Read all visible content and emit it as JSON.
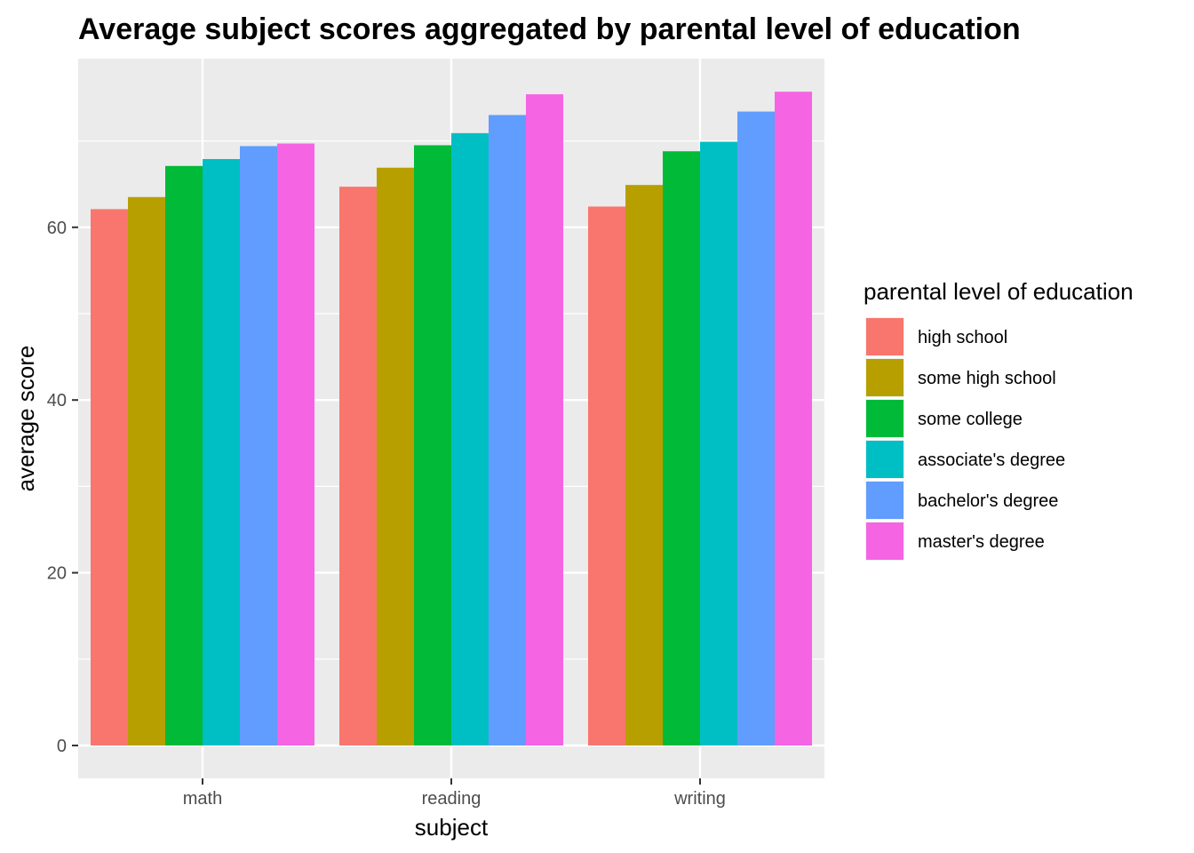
{
  "chart_data": {
    "type": "bar",
    "title": "Average subject scores aggregated by parental level of education",
    "xlabel": "subject",
    "ylabel": "average score",
    "categories": [
      "math",
      "reading",
      "writing"
    ],
    "ylim": [
      0,
      80
    ],
    "yticks": [
      0,
      20,
      40,
      60
    ],
    "grid": true,
    "legend": {
      "title": "parental level of education",
      "position": "right"
    },
    "series": [
      {
        "name": "high school",
        "color": "#F8766D",
        "values": [
          62.1,
          64.7,
          62.4
        ]
      },
      {
        "name": "some high school",
        "color": "#B79F00",
        "values": [
          63.5,
          66.9,
          64.9
        ]
      },
      {
        "name": "some college",
        "color": "#00BA38",
        "values": [
          67.1,
          69.5,
          68.8
        ]
      },
      {
        "name": "associate's degree",
        "color": "#00BFC4",
        "values": [
          67.9,
          70.9,
          69.9
        ]
      },
      {
        "name": "bachelor's degree",
        "color": "#619CFF",
        "values": [
          69.4,
          73.0,
          73.4
        ]
      },
      {
        "name": "master's degree",
        "color": "#F564E3",
        "values": [
          69.7,
          75.4,
          75.7
        ]
      }
    ]
  }
}
